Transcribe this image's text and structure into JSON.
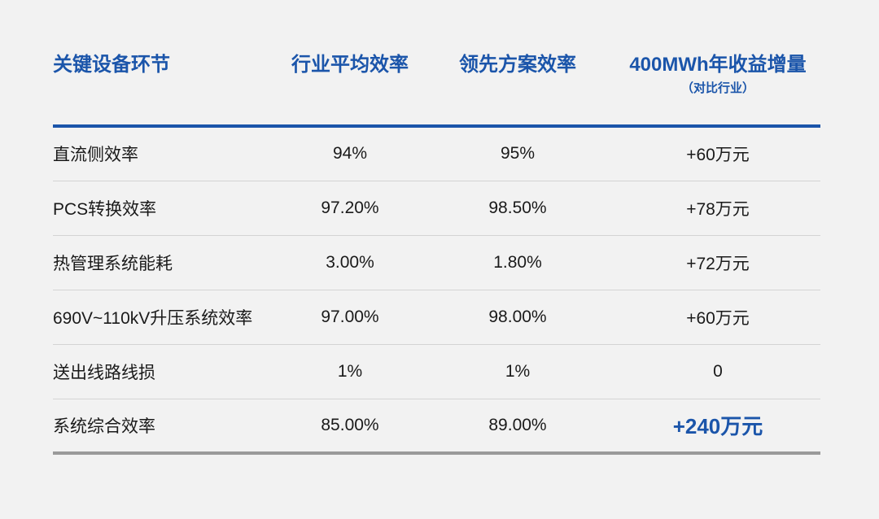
{
  "theme": {
    "background": "#f2f2f2",
    "accent_blue": "#1b55aa",
    "text_dark": "#1a1a1a",
    "row_divider": "#d4d4d4",
    "bottom_border_gray": "#9a9a9a"
  },
  "chart_data": {
    "type": "table",
    "columns": [
      "关键设备环节",
      "行业平均效率",
      "领先方案效率",
      "400MWh年收益增量"
    ],
    "column_subtitle": "（对比行业）",
    "rows": [
      [
        "直流侧效率",
        "94%",
        "95%",
        "+60万元"
      ],
      [
        "PCS转换效率",
        "97.20%",
        "98.50%",
        "+78万元"
      ],
      [
        "热管理系统能耗",
        "3.00%",
        "1.80%",
        "+72万元"
      ],
      [
        "690V~110kV升压系统效率",
        "97.00%",
        "98.00%",
        "+60万元"
      ],
      [
        "送出线路线损",
        "1%",
        "1%",
        "0"
      ],
      [
        "系统综合效率",
        "85.00%",
        "89.00%",
        "+240万元"
      ]
    ],
    "emphasized_value": "+240万元",
    "layout_hints": {
      "header_color": "#1b55aa",
      "highlight_cell": {
        "row": 5,
        "col": 3
      }
    }
  }
}
